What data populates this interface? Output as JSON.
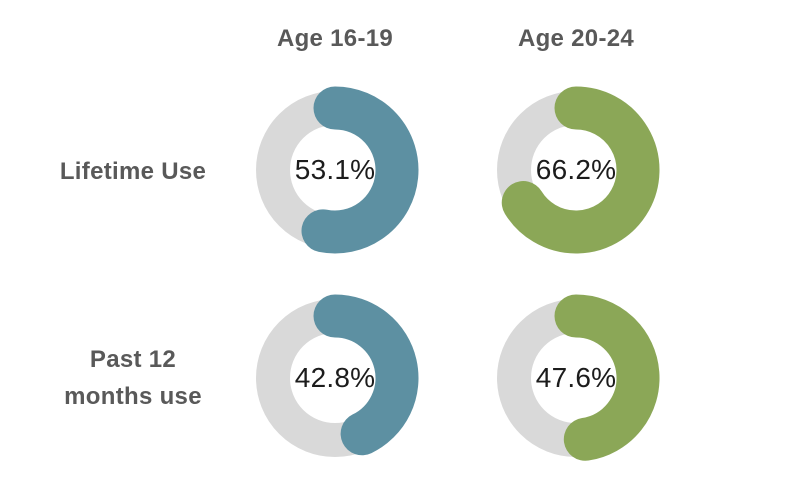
{
  "chart_data": {
    "type": "donut",
    "title": "",
    "columns": [
      "Age 16-19",
      "Age 20-24"
    ],
    "rows": [
      "Lifetime Use",
      "Past 12 months use"
    ],
    "series": [
      {
        "name": "Age 16-19",
        "color": "#5d90a2",
        "values": [
          53.1,
          42.8
        ]
      },
      {
        "name": "Age 20-24",
        "color": "#8ba757",
        "values": [
          66.2,
          47.6
        ]
      }
    ],
    "unit": "%",
    "value_labels": [
      [
        "53.1%",
        "66.2%"
      ],
      [
        "42.8%",
        "47.6%"
      ]
    ],
    "start_angle_deg": -90,
    "direction": "clockwise",
    "legend": "none",
    "grid": "off",
    "colors": {
      "track": "#d9d9d9",
      "value_text": "#1c1c1c",
      "label_text": "#595959",
      "background": "#ffffff"
    }
  },
  "display": {
    "row2_line1": "Past 12",
    "row2_line2": "months use"
  }
}
